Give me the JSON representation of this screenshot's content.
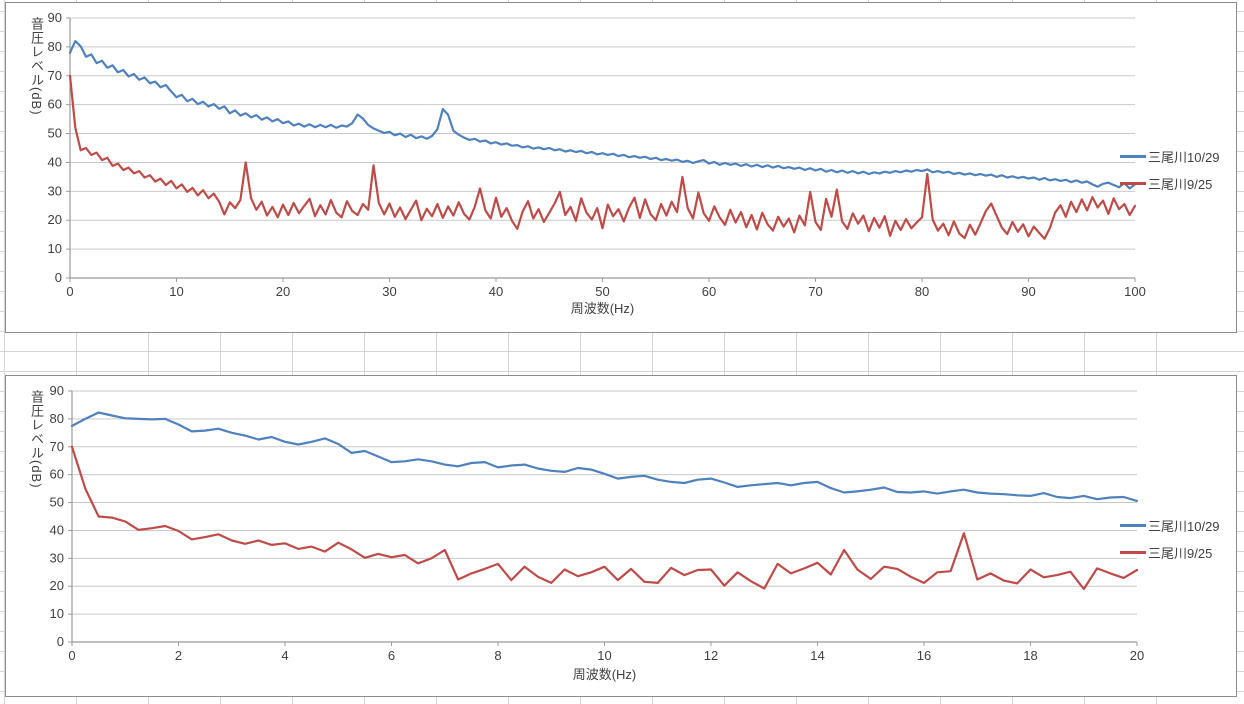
{
  "colors": {
    "series_blue": "#4F81BD",
    "series_red": "#BE4B48",
    "gridline": "#c9c9c9",
    "axis": "#9b9b9b",
    "excel_grid": "#d4d4d4",
    "text": "#3f3f3f"
  },
  "chart_data": [
    {
      "type": "line",
      "title": "",
      "xlabel": "周波数(Hz)",
      "ylabel": "音圧レベル(dB)",
      "xlim": [
        0,
        100
      ],
      "ylim": [
        0,
        90
      ],
      "x_ticks": [
        0,
        10,
        20,
        30,
        40,
        50,
        60,
        70,
        80,
        90,
        100
      ],
      "y_ticks": [
        0,
        10,
        20,
        30,
        40,
        50,
        60,
        70,
        80,
        90
      ],
      "grid": "horizontal",
      "legend_position": "right",
      "series": [
        {
          "name": "三尾川10/29",
          "color": "#4F81BD",
          "x_start": 0,
          "x_step": 0.5,
          "values": [
            78,
            82,
            80.2,
            76.6,
            77.4,
            74.4,
            75.2,
            72.8,
            73.6,
            71.2,
            72,
            69.8,
            70.6,
            68.6,
            69.4,
            67.4,
            68,
            66,
            66.8,
            64.6,
            62.6,
            63.4,
            61.2,
            62,
            60.2,
            61,
            59.4,
            60.2,
            58.6,
            59.4,
            57,
            58,
            56.2,
            57,
            55.6,
            56.4,
            54.8,
            55.6,
            54.2,
            55,
            53.6,
            54.2,
            52.8,
            53.4,
            52.4,
            53.2,
            52.2,
            53,
            52.2,
            53,
            52,
            52.8,
            52.4,
            53.6,
            56.6,
            55.2,
            53,
            51.8,
            51,
            50.2,
            50.6,
            49.4,
            50,
            48.8,
            49.6,
            48.4,
            49,
            48.2,
            49.2,
            51.5,
            58.5,
            56.5,
            51,
            49.6,
            48.6,
            47.8,
            48.2,
            47.2,
            47.6,
            46.6,
            47,
            46.2,
            46.6,
            45.8,
            46,
            45.2,
            45.6,
            44.8,
            45.2,
            44.6,
            45,
            44.2,
            44.6,
            43.8,
            44.2,
            43.6,
            44,
            43.2,
            43.6,
            42.8,
            43.2,
            42.6,
            43,
            42.2,
            42.6,
            41.8,
            42.2,
            41.6,
            42,
            41.2,
            41.6,
            40.8,
            41.2,
            40.6,
            41,
            40.2,
            40.6,
            39.8,
            40.4,
            40.8,
            39.6,
            40.2,
            39.2,
            39.8,
            39.2,
            39.6,
            38.8,
            39.4,
            38.6,
            39.2,
            38.4,
            39,
            38.2,
            38.8,
            38,
            38.4,
            37.8,
            38.2,
            37.4,
            38,
            37.2,
            37.8,
            36.8,
            37.4,
            36.6,
            37.2,
            36.4,
            37,
            36.2,
            36.8,
            36,
            36.6,
            36.2,
            36.8,
            36.4,
            37,
            36.6,
            37.2,
            36.8,
            37.4,
            37,
            37.6,
            36.6,
            37,
            36.4,
            36.8,
            36,
            36.4,
            35.8,
            36.2,
            35.6,
            36,
            35.4,
            35.8,
            35,
            35.6,
            34.8,
            35.2,
            34.6,
            35,
            34.4,
            34.8,
            34,
            34.6,
            33.8,
            34.2,
            33.6,
            34,
            33.2,
            33.8,
            33,
            33.4,
            32.4,
            31.6,
            32.6,
            33,
            32.2,
            31.4,
            32.8,
            31,
            32.4
          ]
        },
        {
          "name": "三尾川9/25",
          "color": "#BE4B48",
          "x_start": 0,
          "x_step": 0.5,
          "values": [
            70,
            52,
            44.2,
            45,
            42.6,
            43.4,
            40.8,
            41.6,
            38.8,
            39.6,
            37.4,
            38.2,
            36.2,
            37,
            34.8,
            35.6,
            33.4,
            34.4,
            32.2,
            33.6,
            31,
            32.4,
            29.8,
            31.2,
            28.6,
            30.4,
            27.6,
            29.2,
            26.4,
            22,
            26.2,
            24.2,
            27,
            40,
            27.6,
            23.6,
            26.4,
            21.6,
            24.6,
            21,
            25.4,
            21.8,
            26,
            22.4,
            25,
            27.4,
            21.4,
            25.2,
            22,
            27,
            22.6,
            21,
            26.6,
            23.2,
            21.8,
            25.6,
            23.6,
            39,
            26,
            22,
            25.8,
            21.2,
            24.4,
            20.4,
            23.6,
            26.8,
            20,
            24,
            21.4,
            25.6,
            20.8,
            24.8,
            21.6,
            26.2,
            22.2,
            20.2,
            24.6,
            31,
            23.4,
            20.6,
            27.8,
            21.2,
            24.2,
            19.8,
            17,
            23,
            26.6,
            20.6,
            23.8,
            19.4,
            22.6,
            25.8,
            29.8,
            21.8,
            24.6,
            19.8,
            27.6,
            22.6,
            20.2,
            24.2,
            17.2,
            25.4,
            21.4,
            23.8,
            19.6,
            24.4,
            27.8,
            20.8,
            27.2,
            22.2,
            20,
            25.6,
            21.6,
            26.4,
            22.8,
            35,
            24.2,
            20.6,
            29.6,
            22.4,
            19.8,
            24.8,
            21,
            18.4,
            23.6,
            19.2,
            22.8,
            17.6,
            21.8,
            16.8,
            22.6,
            18.6,
            16.4,
            21.2,
            17.8,
            20.6,
            15.8,
            21.6,
            18.2,
            29.8,
            19.4,
            16.6,
            27.4,
            21.2,
            30.6,
            19.6,
            17,
            22.4,
            18.8,
            21.6,
            16.2,
            20.8,
            17.4,
            21.4,
            14.6,
            19.8,
            16.6,
            20.4,
            17.2,
            19.2,
            21,
            36,
            20.2,
            16.4,
            18.8,
            14.8,
            19.6,
            15.4,
            13.8,
            18.4,
            15,
            19,
            23.2,
            25.8,
            21.6,
            17.4,
            15.2,
            19.4,
            16,
            18.6,
            14.4,
            17.8,
            15.6,
            13.6,
            17.2,
            22.6,
            25.2,
            21.2,
            26.4,
            22.8,
            27.2,
            23.4,
            28,
            24.4,
            26.8,
            22.2,
            27.6,
            23.8,
            25.6,
            21.8,
            25
          ]
        }
      ]
    },
    {
      "type": "line",
      "title": "",
      "xlabel": "周波数(Hz)",
      "ylabel": "音圧レベル(dB)",
      "xlim": [
        0,
        20
      ],
      "ylim": [
        0,
        90
      ],
      "x_ticks": [
        0,
        2,
        4,
        6,
        8,
        10,
        12,
        14,
        16,
        18,
        20
      ],
      "y_ticks": [
        0,
        10,
        20,
        30,
        40,
        50,
        60,
        70,
        80,
        90
      ],
      "grid": "horizontal",
      "legend_position": "right",
      "series": [
        {
          "name": "三尾川10/29",
          "color": "#4F81BD",
          "x_start": 0,
          "x_step": 0.25,
          "values": [
            77.5,
            80,
            82.3,
            81.2,
            80.2,
            80,
            79.8,
            80,
            78,
            75.5,
            75.8,
            76.5,
            75,
            74,
            72.6,
            73.5,
            71.8,
            70.8,
            71.8,
            73,
            71,
            67.8,
            68.5,
            66.5,
            64.5,
            64.8,
            65.5,
            64.8,
            63.6,
            63,
            64.2,
            64.5,
            62.6,
            63.3,
            63.6,
            62.2,
            61.4,
            61,
            62.4,
            61.8,
            60.3,
            58.6,
            59.2,
            59.6,
            58.2,
            57.4,
            57,
            58.2,
            58.6,
            57.2,
            55.6,
            56.2,
            56.6,
            57,
            56.2,
            57,
            57.4,
            55.2,
            53.6,
            54,
            54.6,
            55.4,
            53.8,
            53.6,
            54,
            53.2,
            54,
            54.6,
            53.6,
            53.2,
            53,
            52.6,
            52.4,
            53.4,
            52,
            51.6,
            52.4,
            51.2,
            51.8,
            52,
            50.6
          ]
        },
        {
          "name": "三尾川9/25",
          "color": "#BE4B48",
          "x_start": 0,
          "x_step": 0.25,
          "values": [
            70,
            55,
            45,
            44.6,
            43.2,
            40.2,
            40.8,
            41.6,
            39.8,
            36.8,
            37.6,
            38.6,
            36.4,
            35.2,
            36.4,
            34.8,
            35.4,
            33.4,
            34.2,
            32.4,
            35.6,
            33.2,
            30.2,
            31.6,
            30.4,
            31.2,
            28.2,
            30,
            33,
            22.4,
            24.6,
            26.2,
            28,
            22.2,
            27,
            23.4,
            21.2,
            26,
            23.6,
            25,
            27,
            22.2,
            26.2,
            21.6,
            21.2,
            26.6,
            24,
            25.8,
            26,
            20.2,
            25,
            21.8,
            19.2,
            28,
            24.6,
            26.4,
            28.4,
            24.2,
            33,
            26,
            22.6,
            27,
            26.2,
            23.4,
            21.2,
            25,
            25.4,
            39,
            22.4,
            24.6,
            22,
            21,
            26,
            23.2,
            24,
            25.2,
            19,
            26.4,
            24.6,
            23,
            25.8
          ]
        }
      ]
    }
  ]
}
